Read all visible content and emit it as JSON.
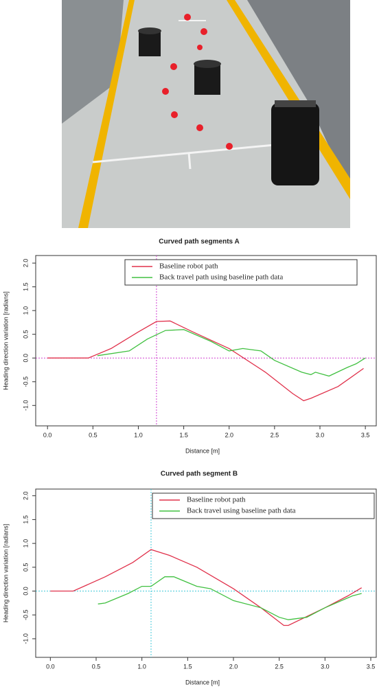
{
  "chart_data": [
    {
      "type": "line",
      "title": "Curved path segments A",
      "x_label": "Distance [m]",
      "y_label": "Heading direction variation [radians]",
      "xlim": [
        -0.13,
        3.62
      ],
      "ylim": [
        -1.43,
        2.16
      ],
      "xticks": [
        {
          "value": 0,
          "label": "0.0"
        },
        {
          "value": 0.5,
          "label": "0.5"
        },
        {
          "value": 1,
          "label": "1.0"
        },
        {
          "value": 1.5,
          "label": "1.5"
        },
        {
          "value": 2,
          "label": "2.0"
        },
        {
          "value": 2.5,
          "label": "2.5"
        },
        {
          "value": 3,
          "label": "3.0"
        },
        {
          "value": 3.5,
          "label": "3.5"
        }
      ],
      "yticks": [
        {
          "value": 2,
          "label": "2.0"
        },
        {
          "value": 1.5,
          "label": "1.5"
        },
        {
          "value": 1,
          "label": "1.0"
        },
        {
          "value": 0.5,
          "label": "0.5"
        },
        {
          "value": 0,
          "label": "0.0"
        },
        {
          "value": -0.5,
          "label": "-0.5"
        },
        {
          "value": -1,
          "label": "-1.0"
        }
      ],
      "reference_lines": {
        "x": 1.2,
        "y": 0,
        "color": "#d040d0"
      },
      "series": [
        {
          "name": "Baseline robot path",
          "color": "#e0304a",
          "x": [
            0,
            0.45,
            0.7,
            1.0,
            1.2,
            1.35,
            1.6,
            2.0,
            2.4,
            2.7,
            2.82,
            2.9,
            3.2,
            3.48
          ],
          "values": [
            0,
            0,
            0.2,
            0.55,
            0.77,
            0.78,
            0.55,
            0.2,
            -0.3,
            -0.75,
            -0.9,
            -0.85,
            -0.6,
            -0.22
          ]
        },
        {
          "name": "Back travel path using baseline path data",
          "color": "#40c040",
          "x": [
            0.55,
            0.9,
            1.1,
            1.3,
            1.5,
            1.8,
            2.0,
            2.15,
            2.35,
            2.5,
            2.8,
            2.9,
            2.95,
            3.1,
            3.3,
            3.4,
            3.5
          ],
          "values": [
            0.05,
            0.15,
            0.4,
            0.58,
            0.6,
            0.35,
            0.15,
            0.2,
            0.15,
            -0.05,
            -0.3,
            -0.35,
            -0.3,
            -0.38,
            -0.2,
            -0.12,
            0
          ]
        }
      ]
    },
    {
      "type": "line",
      "title": "Curved path segment B",
      "x_label": "Distance [m]",
      "y_label": "Heading direction variation [radians]",
      "xlim": [
        -0.16,
        3.56
      ],
      "ylim": [
        -1.39,
        2.14
      ],
      "xticks": [
        {
          "value": 0,
          "label": "0.0"
        },
        {
          "value": 0.5,
          "label": "0.5"
        },
        {
          "value": 1,
          "label": "1.0"
        },
        {
          "value": 1.5,
          "label": "1.5"
        },
        {
          "value": 2,
          "label": "2.0"
        },
        {
          "value": 2.5,
          "label": "2.5"
        },
        {
          "value": 3,
          "label": "3.0"
        },
        {
          "value": 3.5,
          "label": "3.5"
        }
      ],
      "yticks": [
        {
          "value": 2,
          "label": "2.0"
        },
        {
          "value": 1.5,
          "label": "1.5"
        },
        {
          "value": 1,
          "label": "1.0"
        },
        {
          "value": 0.5,
          "label": "0.5"
        },
        {
          "value": 0,
          "label": "0.0"
        },
        {
          "value": -0.5,
          "label": "-0.5"
        },
        {
          "value": -1,
          "label": "-1.0"
        }
      ],
      "reference_lines": {
        "x": 1.1,
        "y": 0,
        "color": "#40c8d8"
      },
      "series": [
        {
          "name": "Baseline robot path",
          "color": "#e0304a",
          "x": [
            0,
            0.25,
            0.6,
            0.9,
            1.1,
            1.3,
            1.6,
            2.0,
            2.3,
            2.55,
            2.6,
            3.0,
            3.25,
            3.4
          ],
          "values": [
            0,
            0,
            0.3,
            0.6,
            0.87,
            0.75,
            0.5,
            0.05,
            -0.35,
            -0.72,
            -0.72,
            -0.35,
            -0.1,
            0.07
          ]
        },
        {
          "name": "Back travel using baseline path data",
          "color": "#40c040",
          "x": [
            0.52,
            0.6,
            0.85,
            1.0,
            1.1,
            1.25,
            1.35,
            1.6,
            1.75,
            2.0,
            2.3,
            2.5,
            2.6,
            2.8,
            3.0,
            3.3,
            3.4
          ],
          "values": [
            -0.27,
            -0.25,
            -0.05,
            0.1,
            0.1,
            0.3,
            0.3,
            0.1,
            0.05,
            -0.2,
            -0.35,
            -0.55,
            -0.6,
            -0.55,
            -0.35,
            -0.1,
            -0.05
          ]
        }
      ]
    }
  ]
}
